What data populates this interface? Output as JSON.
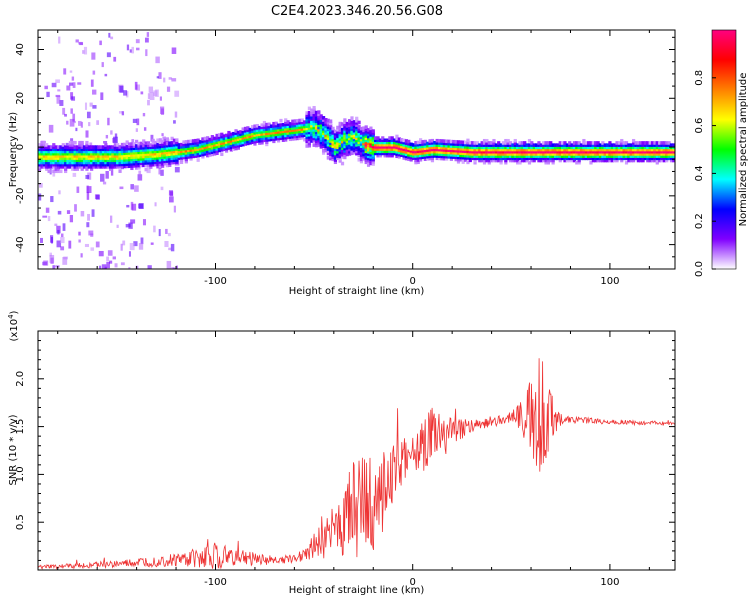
{
  "figure": {
    "title": "C2E4.2023.346.20.56.G08"
  },
  "chart_data": [
    {
      "type": "heatmap",
      "title": "",
      "xlabel": "Height of straight line (km)",
      "ylabel": "Frequency (Hz)",
      "xlim": [
        -190,
        133
      ],
      "ylim": [
        -50,
        48
      ],
      "xticks": [
        -100,
        0,
        100
      ],
      "yticks": [
        -40,
        -20,
        0,
        20,
        40
      ],
      "colorbar": {
        "label": "Normalized spectral amplitude",
        "range": [
          0,
          1
        ],
        "ticks": [
          0.0,
          0.2,
          0.4,
          0.6,
          0.8
        ],
        "colors": [
          "#ffffff",
          "#8000ff",
          "#0000ff",
          "#00ffff",
          "#00ff00",
          "#ffff00",
          "#ff8000",
          "#ff0000",
          "#ff0080"
        ]
      },
      "ridge": {
        "x": [
          -190,
          -170,
          -150,
          -130,
          -110,
          -100,
          -90,
          -80,
          -70,
          -60,
          -50,
          -45,
          -40,
          -35,
          -30,
          -25,
          -20,
          -10,
          0,
          10,
          30,
          50,
          70,
          90,
          110,
          133
        ],
        "y": [
          -4,
          -4,
          -4,
          -3,
          -1,
          1,
          3,
          5,
          6,
          7,
          8,
          5,
          0,
          3,
          4,
          1,
          0,
          0,
          -2,
          -1,
          -2,
          -2,
          -2,
          -2,
          -2,
          -2
        ]
      },
      "grid": false
    },
    {
      "type": "line",
      "title": "",
      "xlabel": "Height of straight line (km)",
      "ylabel": "SNR (10 * v/v)",
      "scale_label": "(x10",
      "scale_exponent": "4",
      "xlim": [
        -190,
        133
      ],
      "ylim": [
        0,
        2.5
      ],
      "xticks": [
        -100,
        0,
        100
      ],
      "yticks": [
        0.5,
        1.0,
        1.5,
        2.0
      ],
      "series": [
        {
          "color": "#ee3333",
          "envelope": {
            "x": [
              -190,
              -150,
              -120,
              -100,
              -80,
              -70,
              -60,
              -50,
              -40,
              -35,
              -30,
              -25,
              -20,
              -15,
              -10,
              -5,
              0,
              5,
              10,
              20,
              30,
              40,
              50,
              55,
              60,
              65,
              70,
              75,
              80,
              100,
              133
            ],
            "base": [
              0.03,
              0.06,
              0.1,
              0.14,
              0.12,
              0.1,
              0.12,
              0.25,
              0.4,
              0.55,
              0.6,
              0.65,
              0.7,
              0.85,
              1.0,
              1.15,
              1.25,
              1.3,
              1.35,
              1.45,
              1.5,
              1.55,
              1.6,
              1.62,
              1.6,
              1.55,
              1.6,
              1.58,
              1.57,
              1.55,
              1.53
            ],
            "amp": [
              0.02,
              0.04,
              0.08,
              0.15,
              0.08,
              0.05,
              0.05,
              0.15,
              0.3,
              0.45,
              0.6,
              0.65,
              0.6,
              0.5,
              0.35,
              0.25,
              0.2,
              0.35,
              0.4,
              0.15,
              0.08,
              0.06,
              0.06,
              0.2,
              0.45,
              0.8,
              0.3,
              0.08,
              0.04,
              0.03,
              0.02
            ]
          }
        }
      ],
      "grid": false
    }
  ]
}
